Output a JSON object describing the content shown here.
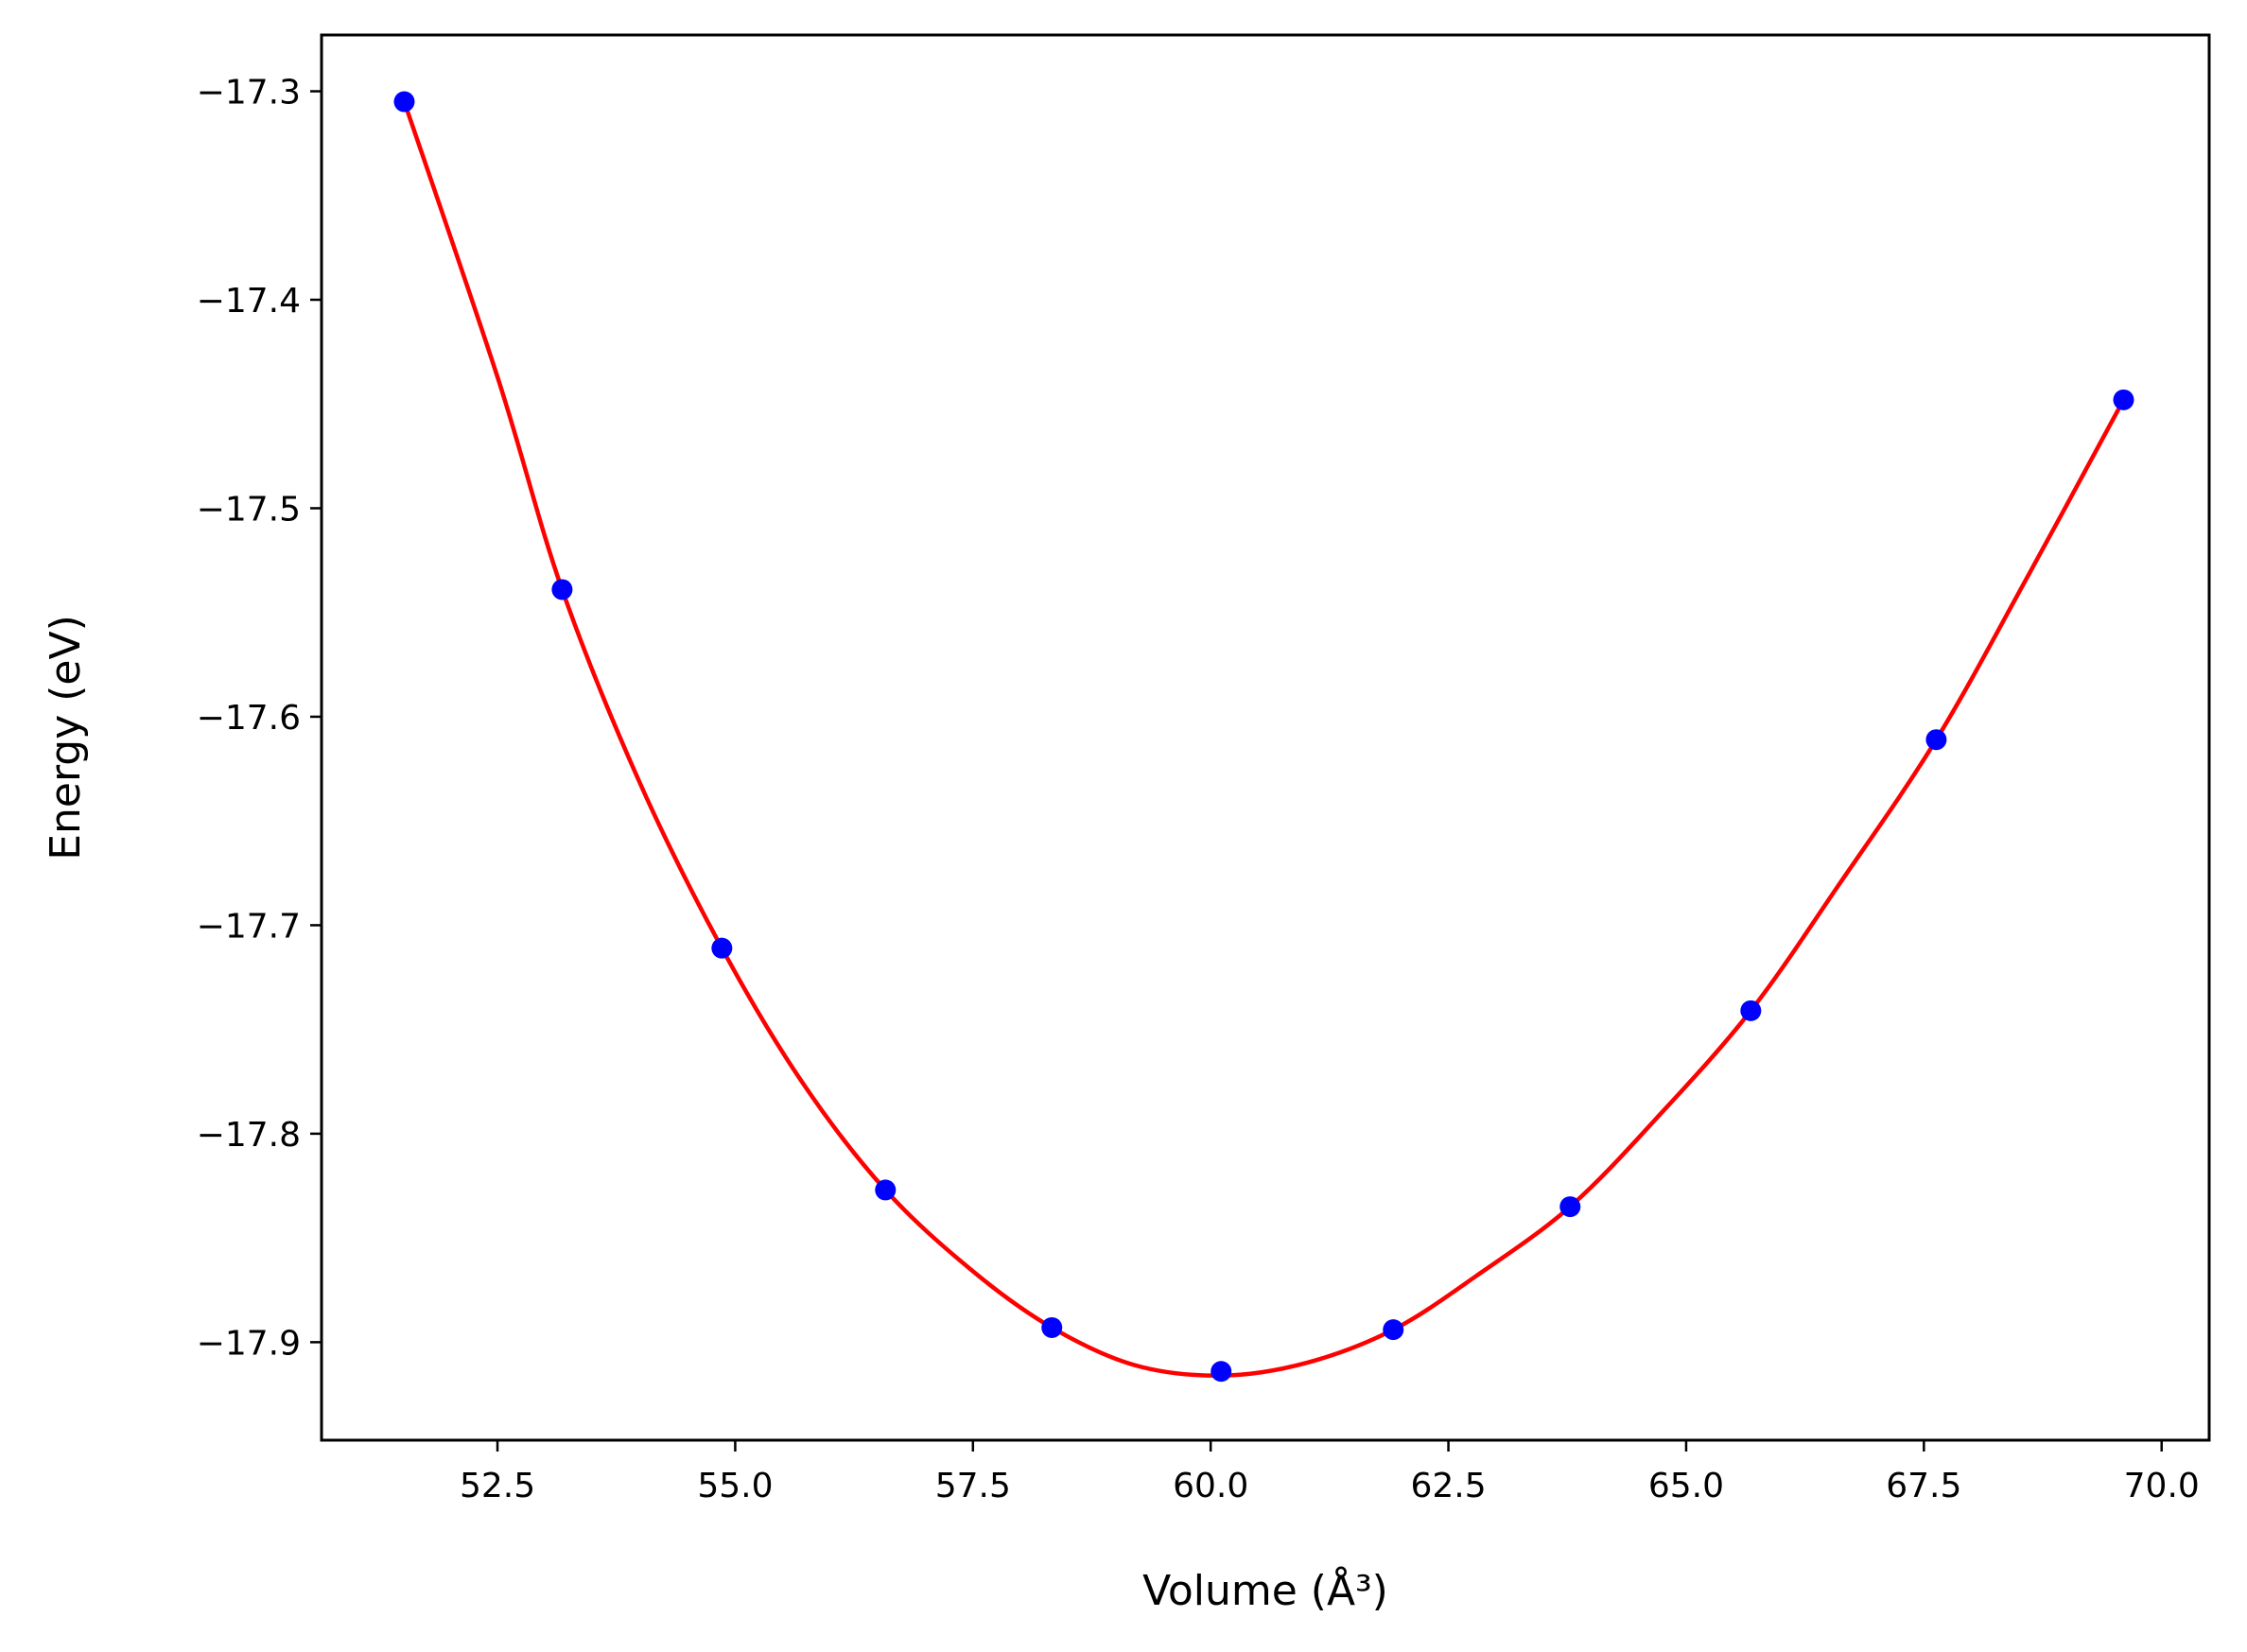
{
  "chart_data": {
    "type": "scatter",
    "xlabel": "Volume (Å³)",
    "ylabel": "Energy (eV)",
    "xlim": [
      50.65,
      70.5
    ],
    "ylim": [
      -17.947,
      -17.273
    ],
    "x_ticks": [
      52.5,
      55.0,
      57.5,
      60.0,
      62.5,
      65.0,
      67.5,
      70.0
    ],
    "x_tick_labels": [
      "52.5",
      "55.0",
      "57.5",
      "60.0",
      "62.5",
      "65.0",
      "67.5",
      "70.0"
    ],
    "y_ticks": [
      -17.3,
      -17.4,
      -17.5,
      -17.6,
      -17.7,
      -17.8,
      -17.9
    ],
    "y_tick_labels": [
      "−17.3",
      "−17.4",
      "−17.5",
      "−17.6",
      "−17.7",
      "−17.8",
      "−17.9"
    ],
    "grid": false,
    "series": [
      {
        "kind": "points",
        "color": "#0000ff",
        "x": [
          51.52,
          53.18,
          54.86,
          56.58,
          58.33,
          60.11,
          61.92,
          63.78,
          65.68,
          67.63,
          69.6
        ],
        "y": [
          -17.305,
          -17.539,
          -17.711,
          -17.827,
          -17.893,
          -17.914,
          -17.894,
          -17.835,
          -17.741,
          -17.611,
          -17.448
        ]
      },
      {
        "kind": "fit-curve",
        "color": "#ff0000",
        "x": [
          51.52,
          52.5,
          53.18,
          54.0,
          54.86,
          55.7,
          56.58,
          57.5,
          58.33,
          59.2,
          60.11,
          61.0,
          61.92,
          62.8,
          63.78,
          64.7,
          65.68,
          66.6,
          67.63,
          68.6,
          69.6
        ],
        "y": [
          -17.305,
          -17.437,
          -17.539,
          -17.632,
          -17.711,
          -17.775,
          -17.827,
          -17.866,
          -17.893,
          -17.911,
          -17.916,
          -17.91,
          -17.894,
          -17.868,
          -17.835,
          -17.792,
          -17.741,
          -17.681,
          -17.611,
          -17.532,
          -17.448
        ]
      }
    ]
  }
}
